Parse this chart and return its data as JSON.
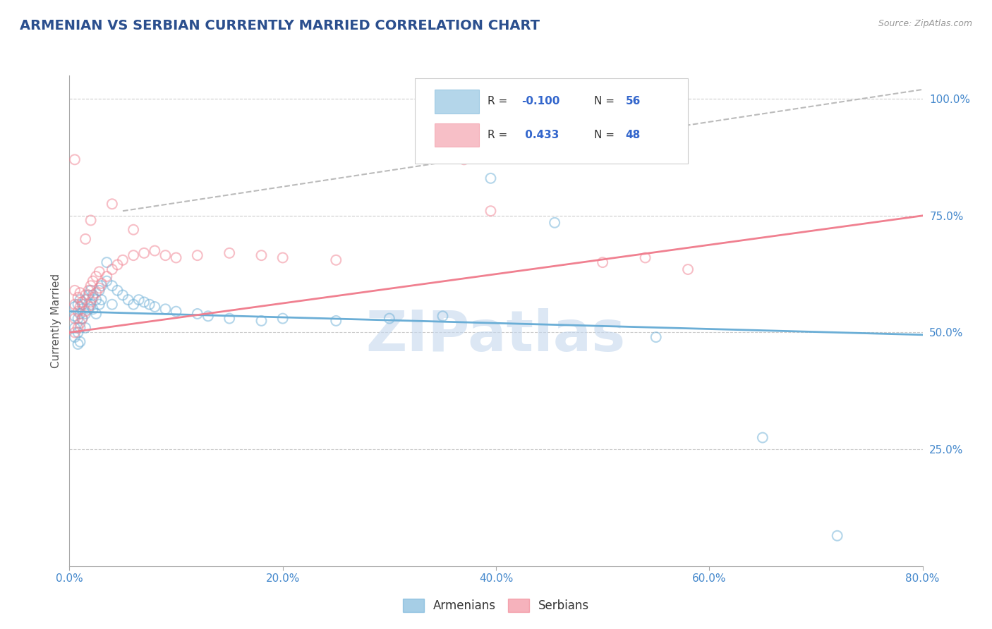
{
  "title": "ARMENIAN VS SERBIAN CURRENTLY MARRIED CORRELATION CHART",
  "source": "Source: ZipAtlas.com",
  "ylabel": "Currently Married",
  "xlim": [
    0.0,
    0.8
  ],
  "ylim": [
    0.0,
    1.05
  ],
  "legend_labels_bottom": [
    "Armenians",
    "Serbians"
  ],
  "armenians_color": "#6baed6",
  "serbians_color": "#f08090",
  "title_color": "#2b4f8e",
  "source_color": "#999999",
  "axis_color": "#aaaaaa",
  "grid_color": "#cccccc",
  "tick_color": "#4488cc",
  "r_label_color": "#3366cc",
  "text_color": "#333333",
  "armenians_scatter": [
    [
      0.005,
      0.535
    ],
    [
      0.005,
      0.555
    ],
    [
      0.005,
      0.51
    ],
    [
      0.005,
      0.49
    ],
    [
      0.008,
      0.56
    ],
    [
      0.008,
      0.53
    ],
    [
      0.008,
      0.5
    ],
    [
      0.008,
      0.475
    ],
    [
      0.01,
      0.57
    ],
    [
      0.01,
      0.54
    ],
    [
      0.01,
      0.51
    ],
    [
      0.01,
      0.48
    ],
    [
      0.012,
      0.56
    ],
    [
      0.012,
      0.53
    ],
    [
      0.015,
      0.57
    ],
    [
      0.015,
      0.54
    ],
    [
      0.015,
      0.51
    ],
    [
      0.018,
      0.58
    ],
    [
      0.018,
      0.55
    ],
    [
      0.02,
      0.59
    ],
    [
      0.02,
      0.56
    ],
    [
      0.022,
      0.58
    ],
    [
      0.022,
      0.55
    ],
    [
      0.025,
      0.57
    ],
    [
      0.025,
      0.54
    ],
    [
      0.028,
      0.59
    ],
    [
      0.028,
      0.56
    ],
    [
      0.03,
      0.6
    ],
    [
      0.03,
      0.57
    ],
    [
      0.035,
      0.65
    ],
    [
      0.035,
      0.61
    ],
    [
      0.04,
      0.6
    ],
    [
      0.04,
      0.56
    ],
    [
      0.045,
      0.59
    ],
    [
      0.05,
      0.58
    ],
    [
      0.055,
      0.57
    ],
    [
      0.06,
      0.56
    ],
    [
      0.065,
      0.57
    ],
    [
      0.07,
      0.565
    ],
    [
      0.075,
      0.56
    ],
    [
      0.08,
      0.555
    ],
    [
      0.09,
      0.55
    ],
    [
      0.1,
      0.545
    ],
    [
      0.12,
      0.54
    ],
    [
      0.13,
      0.535
    ],
    [
      0.15,
      0.53
    ],
    [
      0.18,
      0.525
    ],
    [
      0.2,
      0.53
    ],
    [
      0.25,
      0.525
    ],
    [
      0.3,
      0.53
    ],
    [
      0.35,
      0.535
    ],
    [
      0.395,
      0.83
    ],
    [
      0.455,
      0.735
    ],
    [
      0.55,
      0.49
    ],
    [
      0.65,
      0.275
    ],
    [
      0.72,
      0.065
    ]
  ],
  "serbians_scatter": [
    [
      0.005,
      0.5
    ],
    [
      0.005,
      0.53
    ],
    [
      0.005,
      0.56
    ],
    [
      0.005,
      0.59
    ],
    [
      0.008,
      0.51
    ],
    [
      0.008,
      0.545
    ],
    [
      0.008,
      0.575
    ],
    [
      0.01,
      0.52
    ],
    [
      0.01,
      0.555
    ],
    [
      0.01,
      0.585
    ],
    [
      0.012,
      0.53
    ],
    [
      0.012,
      0.565
    ],
    [
      0.015,
      0.545
    ],
    [
      0.015,
      0.58
    ],
    [
      0.018,
      0.555
    ],
    [
      0.018,
      0.59
    ],
    [
      0.02,
      0.565
    ],
    [
      0.02,
      0.6
    ],
    [
      0.022,
      0.575
    ],
    [
      0.022,
      0.61
    ],
    [
      0.025,
      0.585
    ],
    [
      0.025,
      0.62
    ],
    [
      0.028,
      0.595
    ],
    [
      0.028,
      0.63
    ],
    [
      0.03,
      0.605
    ],
    [
      0.035,
      0.62
    ],
    [
      0.04,
      0.635
    ],
    [
      0.045,
      0.645
    ],
    [
      0.05,
      0.655
    ],
    [
      0.06,
      0.665
    ],
    [
      0.07,
      0.67
    ],
    [
      0.08,
      0.675
    ],
    [
      0.09,
      0.665
    ],
    [
      0.1,
      0.66
    ],
    [
      0.12,
      0.665
    ],
    [
      0.15,
      0.67
    ],
    [
      0.18,
      0.665
    ],
    [
      0.2,
      0.66
    ],
    [
      0.25,
      0.655
    ],
    [
      0.37,
      0.87
    ],
    [
      0.395,
      0.76
    ],
    [
      0.5,
      0.65
    ],
    [
      0.54,
      0.66
    ],
    [
      0.58,
      0.635
    ],
    [
      0.005,
      0.87
    ],
    [
      0.04,
      0.775
    ],
    [
      0.06,
      0.72
    ],
    [
      0.015,
      0.7
    ],
    [
      0.02,
      0.74
    ]
  ],
  "armenians_line_x": [
    0.0,
    0.8
  ],
  "armenians_line_y": [
    0.545,
    0.495
  ],
  "serbians_line_x": [
    0.0,
    0.8
  ],
  "serbians_line_y": [
    0.5,
    0.75
  ],
  "dashed_line_x": [
    0.05,
    0.8
  ],
  "dashed_line_y": [
    0.76,
    1.02
  ],
  "watermark": "ZIPatlas",
  "watermark_color": "#c5d8ee",
  "dot_size": 100,
  "alpha": 0.5
}
